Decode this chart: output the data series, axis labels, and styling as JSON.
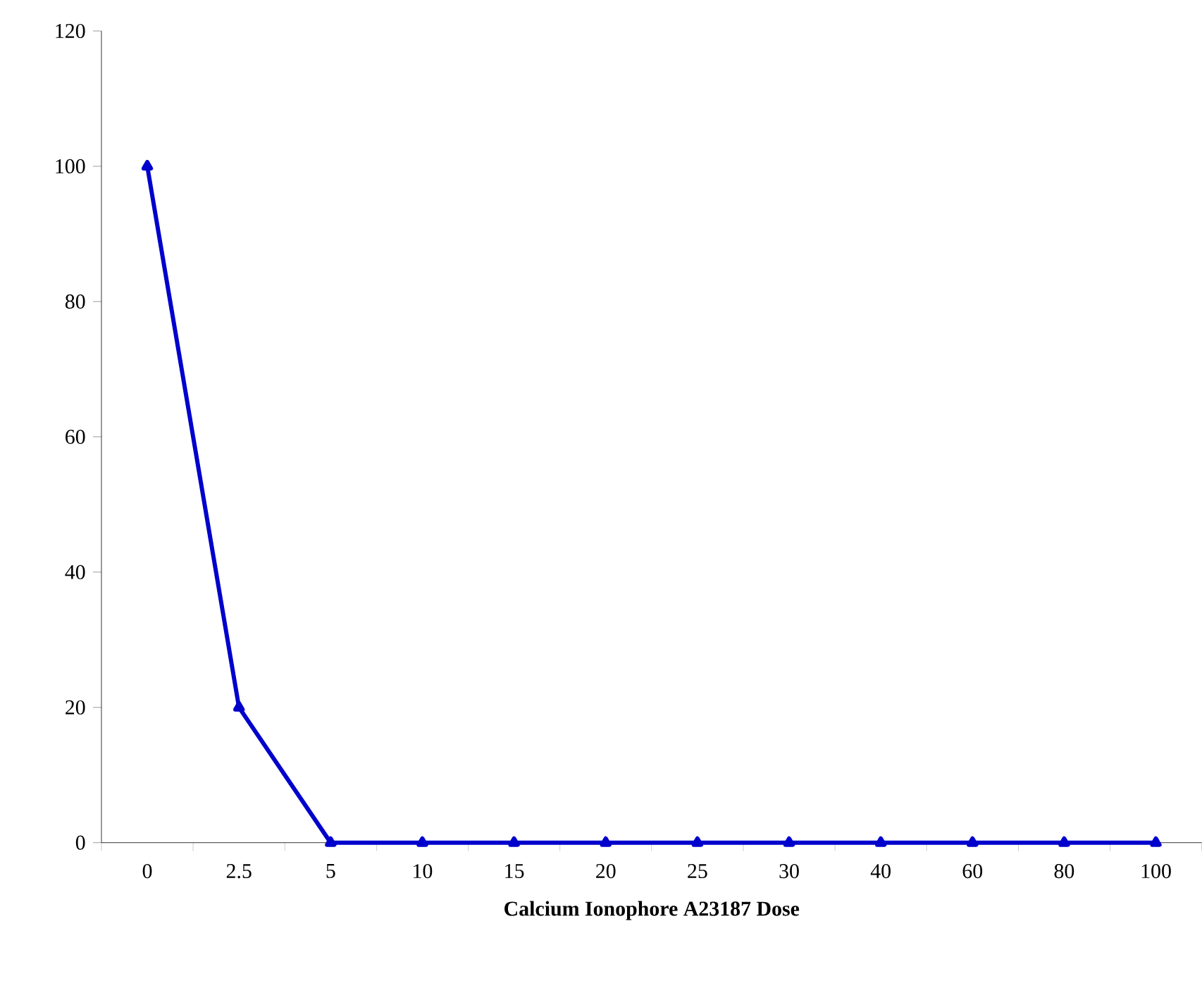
{
  "chart_data": {
    "type": "line",
    "xlabel": "Calcium Ionophore A23187 Dose",
    "categories": [
      "0",
      "2.5",
      "5",
      "10",
      "15",
      "20",
      "25",
      "30",
      "40",
      "60",
      "80",
      "100"
    ],
    "ylim": [
      0,
      120
    ],
    "yticks": [
      0,
      20,
      40,
      60,
      80,
      100,
      120
    ],
    "marker": "triangle",
    "line_style": "solid",
    "series": [
      {
        "color": "#0000cc",
        "values": [
          100,
          20,
          0,
          0,
          0,
          0,
          0,
          0,
          0,
          0,
          0,
          0
        ]
      }
    ]
  }
}
